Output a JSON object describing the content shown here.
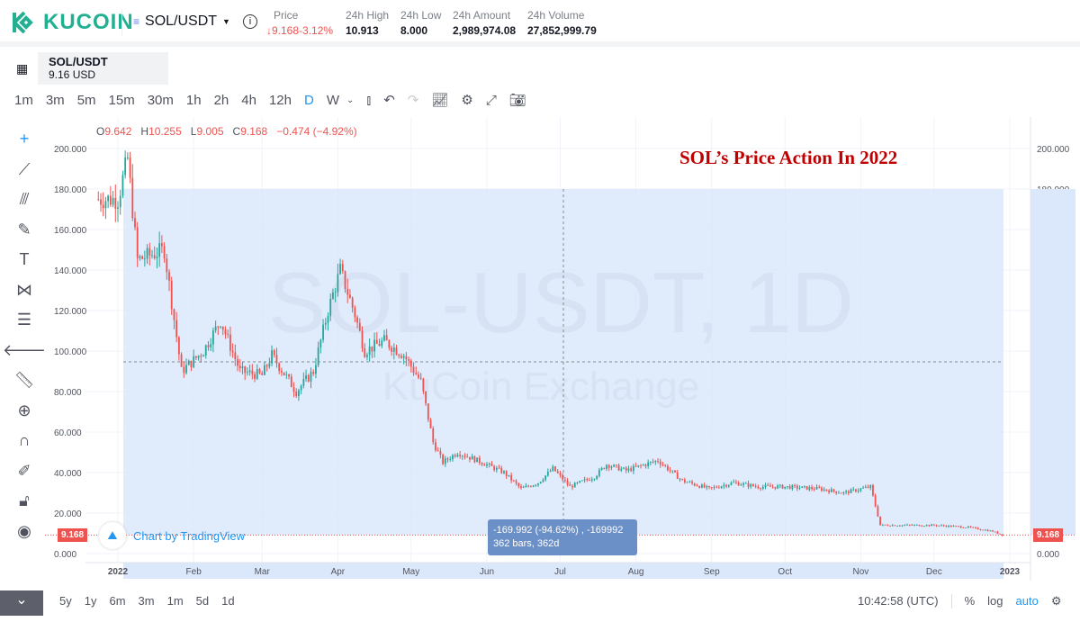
{
  "header": {
    "brand": "KUCOIN",
    "pair": "SOL/USDT",
    "price_label": "Price",
    "price": "↓9.168",
    "price_change": "-3.12%",
    "high_label": "24h High",
    "high": "10.913",
    "low_label": "24h Low",
    "low": "8.000",
    "amount_label": "24h Amount",
    "amount": "2,989,974.08",
    "volume_label": "24h Volume",
    "volume": "27,852,999.79"
  },
  "symbol_tab": {
    "pair": "SOL/USDT",
    "price": "9.16 USD"
  },
  "timeframes": [
    "1m",
    "3m",
    "5m",
    "15m",
    "30m",
    "1h",
    "2h",
    "4h",
    "12h",
    "D",
    "W"
  ],
  "active_timeframe": "D",
  "ohlc": {
    "o_label": "O",
    "o": "9.642",
    "h_label": "H",
    "h": "10.255",
    "l_label": "L",
    "l": "9.005",
    "c_label": "C",
    "c": "9.168",
    "change": "−0.474 (−4.92%)"
  },
  "annotation": "SOL’s Price Action In 2022",
  "watermark": {
    "main": "SOL-USDT, 1D",
    "sub": "KuCoin Exchange"
  },
  "attribution": "Chart by TradingView",
  "last_price_tag": "9.168",
  "measure_tooltip": {
    "line1": "-169.992 (-94.62%) , -169992",
    "line2": "362 bars, 362d"
  },
  "bottom": {
    "ranges": [
      "5y",
      "1y",
      "6m",
      "3m",
      "1m",
      "5d",
      "1d"
    ],
    "clock": "10:42:58 (UTC)",
    "percent": "%",
    "log": "log",
    "auto": "auto"
  },
  "colors": {
    "up": "#26a69a",
    "down": "#ef5350",
    "accent": "#2196f3",
    "selection": "#dbe8fb",
    "brand": "#23af91"
  },
  "chart_data": {
    "type": "candlestick",
    "y_ticks": [
      "0.000",
      "20.000",
      "40.000",
      "60.000",
      "80.000",
      "100.000",
      "120.000",
      "140.000",
      "160.000",
      "180.000",
      "200.000"
    ],
    "ylim": [
      0,
      200
    ],
    "x_ticks": [
      "2022",
      "Feb",
      "Mar",
      "Apr",
      "May",
      "Jun",
      "Jul",
      "Aug",
      "Sep",
      "Oct",
      "Nov",
      "Dec",
      "2023"
    ],
    "approx_closes": [
      [
        "2022-01-01",
        175
      ],
      [
        "2022-01-05",
        195
      ],
      [
        "2022-01-09",
        145
      ],
      [
        "2022-01-20",
        150
      ],
      [
        "2022-01-27",
        90
      ],
      [
        "2022-02-05",
        100
      ],
      [
        "2022-02-12",
        115
      ],
      [
        "2022-02-20",
        90
      ],
      [
        "2022-03-01",
        88
      ],
      [
        "2022-03-05",
        98
      ],
      [
        "2022-03-15",
        80
      ],
      [
        "2022-03-22",
        90
      ],
      [
        "2022-03-28",
        120
      ],
      [
        "2022-04-02",
        140
      ],
      [
        "2022-04-08",
        118
      ],
      [
        "2022-04-12",
        100
      ],
      [
        "2022-04-20",
        105
      ],
      [
        "2022-04-28",
        98
      ],
      [
        "2022-05-05",
        85
      ],
      [
        "2022-05-10",
        55
      ],
      [
        "2022-05-14",
        45
      ],
      [
        "2022-05-20",
        50
      ],
      [
        "2022-05-30",
        45
      ],
      [
        "2022-06-08",
        40
      ],
      [
        "2022-06-15",
        32
      ],
      [
        "2022-06-22",
        35
      ],
      [
        "2022-06-28",
        42
      ],
      [
        "2022-07-05",
        33
      ],
      [
        "2022-07-15",
        38
      ],
      [
        "2022-07-20",
        44
      ],
      [
        "2022-07-28",
        41
      ],
      [
        "2022-08-10",
        46
      ],
      [
        "2022-08-20",
        36
      ],
      [
        "2022-08-31",
        32
      ],
      [
        "2022-09-10",
        35
      ],
      [
        "2022-09-20",
        33
      ],
      [
        "2022-10-01",
        33
      ],
      [
        "2022-10-15",
        32
      ],
      [
        "2022-10-25",
        30
      ],
      [
        "2022-11-05",
        33
      ],
      [
        "2022-11-09",
        14
      ],
      [
        "2022-11-20",
        14
      ],
      [
        "2022-12-01",
        14
      ],
      [
        "2022-12-15",
        13
      ],
      [
        "2022-12-25",
        11
      ],
      [
        "2022-12-29",
        9.168
      ]
    ],
    "measure_range": {
      "from": 180,
      "to": 9.168
    }
  }
}
